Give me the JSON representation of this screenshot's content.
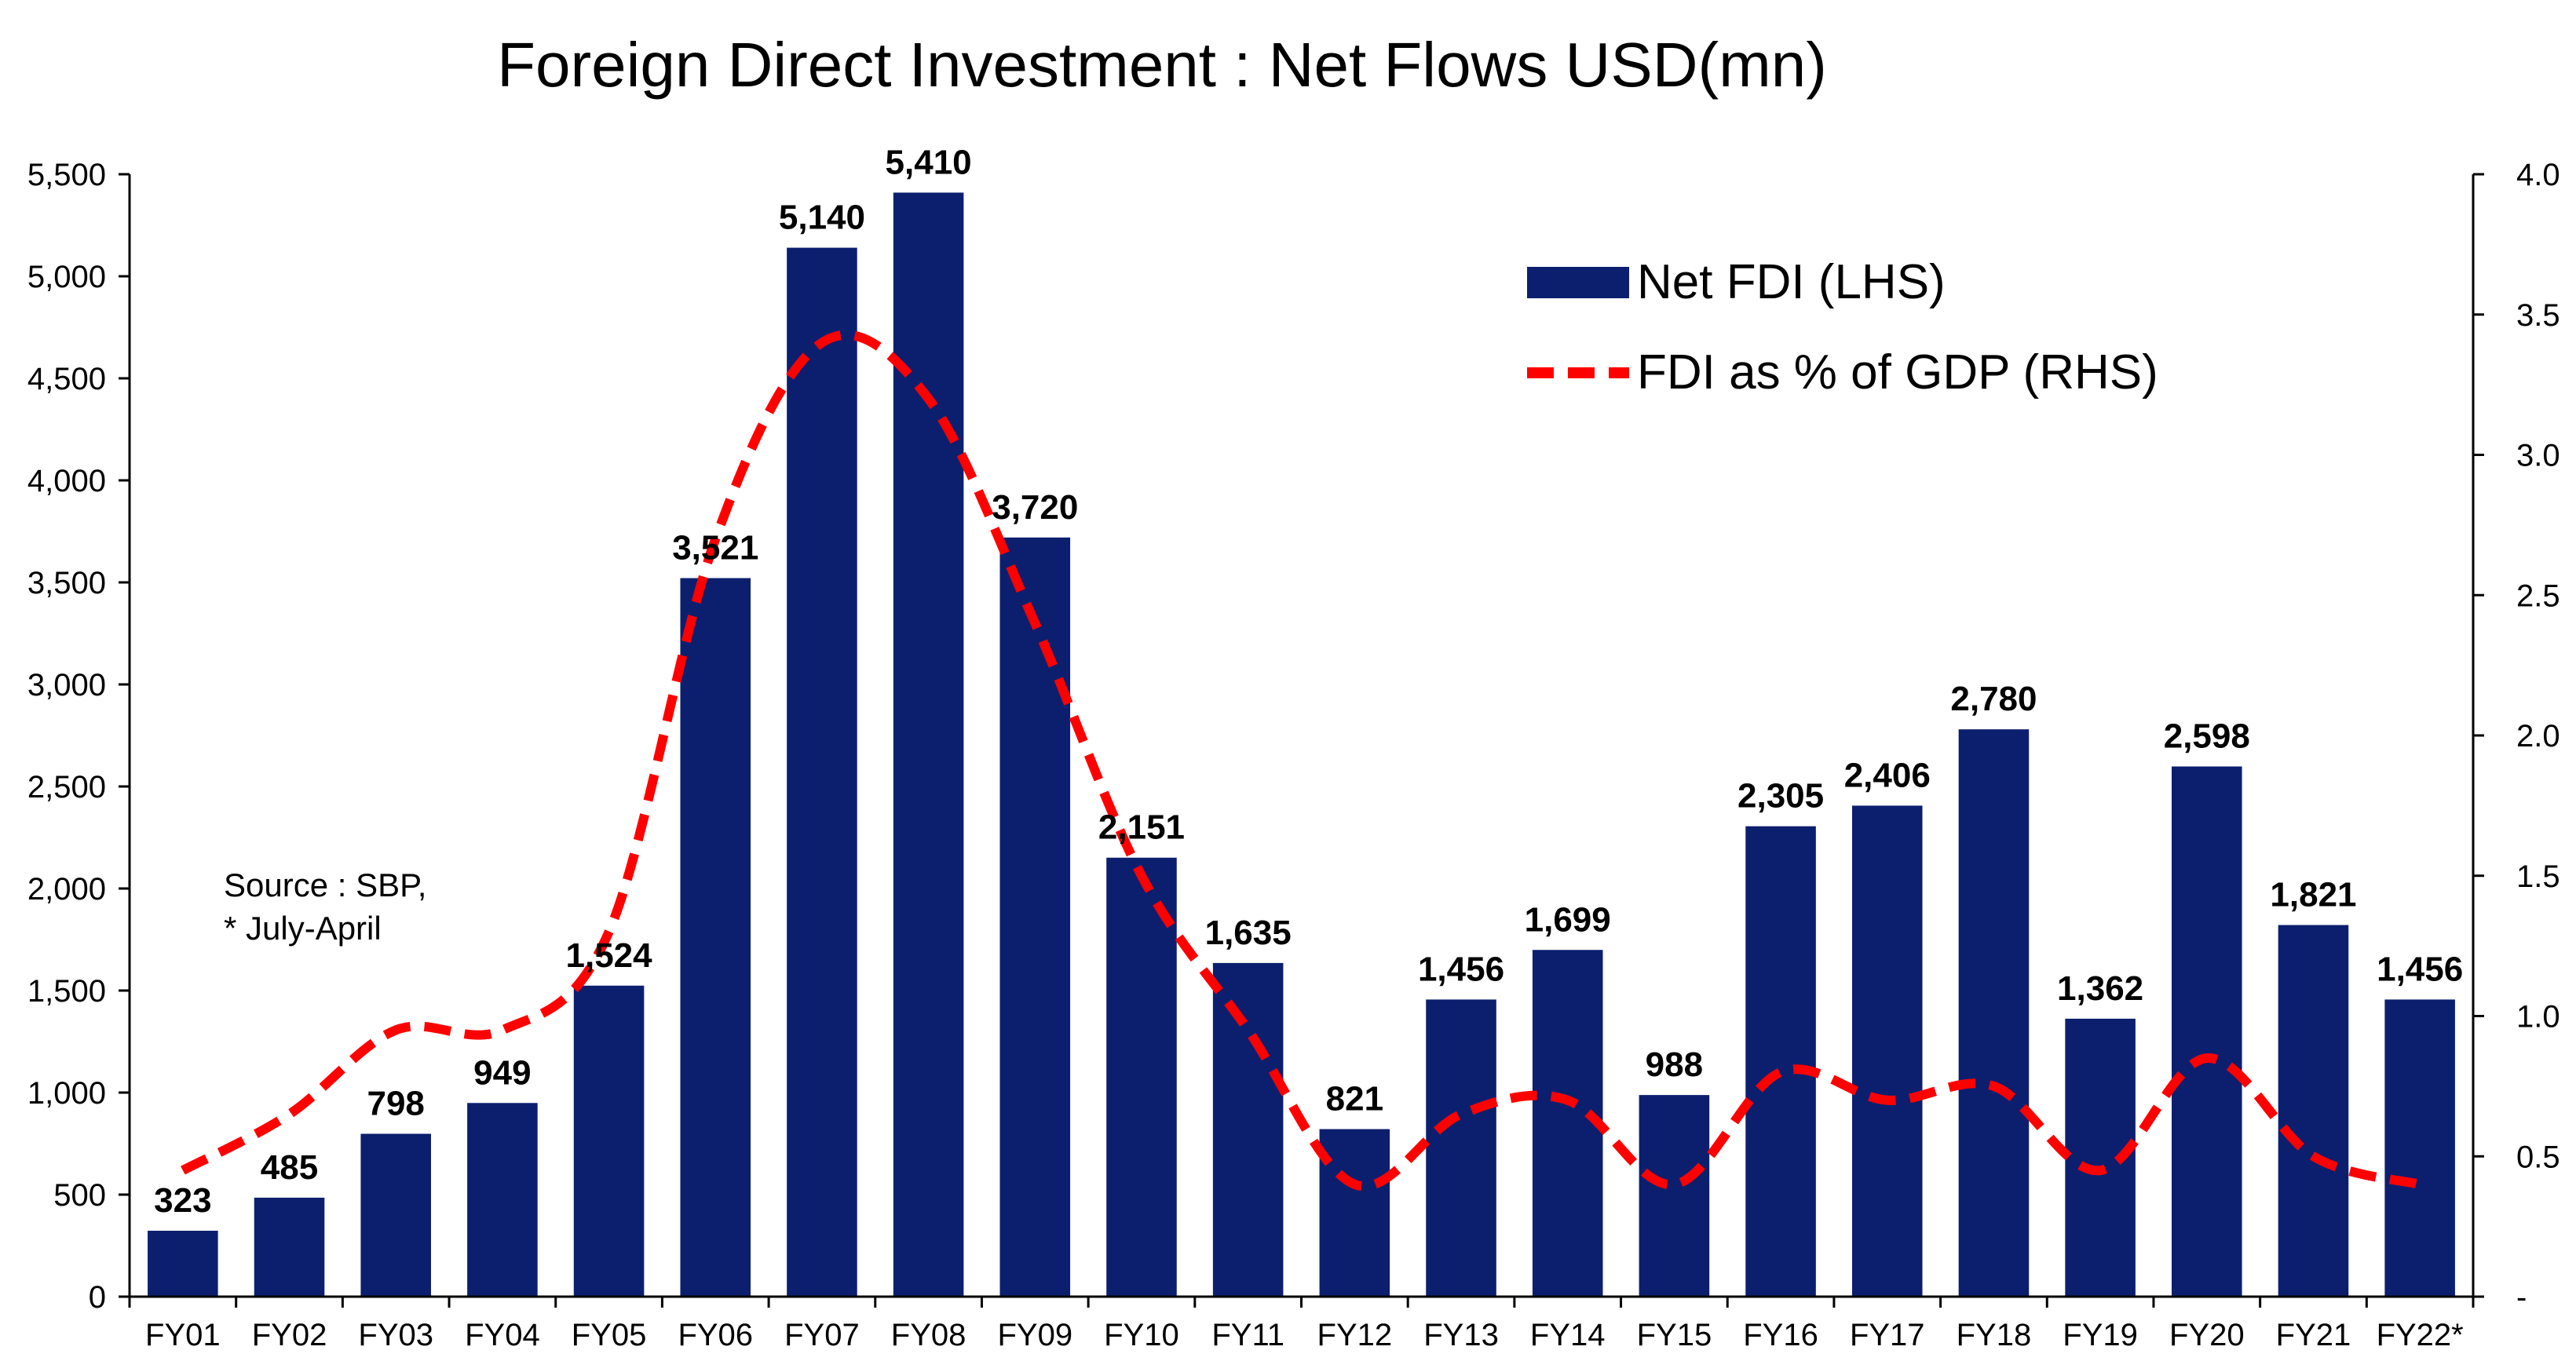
{
  "chart_data": {
    "type": "bar",
    "title": "Foreign Direct Investment : Net Flows USD(mn)",
    "categories": [
      "FY01",
      "FY02",
      "FY03",
      "FY04",
      "FY05",
      "FY06",
      "FY07",
      "FY08",
      "FY09",
      "FY10",
      "FY11",
      "FY12",
      "FY13",
      "FY14",
      "FY15",
      "FY16",
      "FY17",
      "FY18",
      "FY19",
      "FY20",
      "FY21",
      "FY22*"
    ],
    "series": [
      {
        "name": "Net FDI (LHS)",
        "type": "bar",
        "axis": "left",
        "color": "#0c1f6e",
        "values": [
          323,
          485,
          798,
          949,
          1524,
          3521,
          5140,
          5410,
          3720,
          2151,
          1635,
          821,
          1456,
          1699,
          988,
          2305,
          2406,
          2780,
          1362,
          2598,
          1821,
          1456
        ],
        "labels": [
          "323",
          "485",
          "798",
          "949",
          "1,524",
          "3,521",
          "5,140",
          "5,410",
          "3,720",
          "2,151",
          "1,635",
          "821",
          "1,456",
          "1,699",
          "988",
          "2,305",
          "2,406",
          "2,780",
          "1,362",
          "2,598",
          "1,821",
          "1,456"
        ]
      },
      {
        "name": "FDI as % of GDP (RHS)",
        "type": "line",
        "style": "dashed",
        "axis": "right",
        "color": "#ff0000",
        "values": [
          0.45,
          0.65,
          0.95,
          0.95,
          1.3,
          2.7,
          3.4,
          3.2,
          2.4,
          1.5,
          0.95,
          0.4,
          0.65,
          0.7,
          0.4,
          0.8,
          0.7,
          0.75,
          0.45,
          0.85,
          0.5,
          0.4
        ]
      }
    ],
    "y_left": {
      "range": [
        0,
        5500
      ],
      "ticks": [
        0,
        500,
        1000,
        1500,
        2000,
        2500,
        3000,
        3500,
        4000,
        4500,
        5000,
        5500
      ],
      "tick_labels": [
        "0",
        "500",
        "1,000",
        "1,500",
        "2,000",
        "2,500",
        "3,000",
        "3,500",
        "4,000",
        "4,500",
        "5,000",
        "5,500"
      ]
    },
    "y_right": {
      "range": [
        0,
        4.0
      ],
      "ticks": [
        0,
        0.5,
        1.0,
        1.5,
        2.0,
        2.5,
        3.0,
        3.5,
        4.0
      ],
      "tick_labels": [
        "-",
        "0.5",
        "1.0",
        "1.5",
        "2.0",
        "2.5",
        "3.0",
        "3.5",
        "4.0"
      ]
    },
    "legend_position": "top-right",
    "grid": false,
    "annotation": [
      "Source : SBP,",
      "* July-April"
    ]
  }
}
